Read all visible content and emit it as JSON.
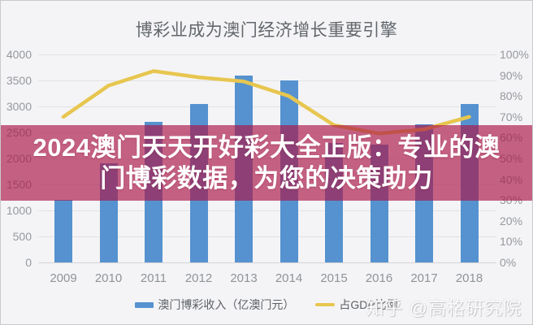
{
  "title": "博彩业成为澳门经济增长重要引擎",
  "banner": {
    "line1": "2024澳门天天开好彩大全正版：专业的澳",
    "line2": "门博彩数据，为您的决策助力"
  },
  "legend": {
    "bar_label": "澳门博彩收入（亿澳门元）",
    "line_label": "占GDP比例"
  },
  "watermark": "知乎 @高格研究院",
  "colors": {
    "background": "#f4f4f6",
    "title_text": "#63676c",
    "axis_text": "#95989d",
    "gridline": "#e2e2e6",
    "bar": "#5592cf",
    "line": "#e7c64f",
    "banner_overlay": "rgba(172,22,71,0.66)",
    "banner_text": "#ffffff"
  },
  "chart_data": {
    "type": "bar",
    "subtype": "bar-plus-line-dual-axis",
    "title": "博彩业成为澳门经济增长重要引擎",
    "categories": [
      "2009",
      "2010",
      "2011",
      "2012",
      "2013",
      "2014",
      "2015",
      "2016",
      "2017",
      "2018"
    ],
    "series": [
      {
        "name": "澳门博彩收入（亿澳门元）",
        "type": "bar",
        "axis": "left",
        "values": [
          1200,
          1900,
          2700,
          3050,
          3600,
          3500,
          2300,
          2270,
          2650,
          3040
        ]
      },
      {
        "name": "占GDP比例",
        "type": "line",
        "axis": "right",
        "unit": "%",
        "values": [
          70,
          85,
          92,
          89,
          87,
          80,
          66,
          62,
          64,
          70
        ]
      }
    ],
    "left_axis": {
      "min": 0,
      "max": 4000,
      "step": 500
    },
    "right_axis": {
      "min": 0,
      "max": 100,
      "step": 10,
      "unit": "%"
    },
    "grid": true,
    "legend_position": "bottom",
    "xlabel": "",
    "ylabel_left": "亿澳门元",
    "ylabel_right": "%"
  }
}
